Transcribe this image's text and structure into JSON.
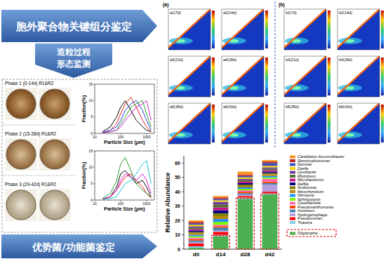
{
  "arrows": [
    "胞外聚合物关键组分鉴定",
    "优势菌/功能菌鉴定"
  ],
  "chevron": [
    "造粒过程",
    "形态监测"
  ],
  "phases": [
    "Phase 1 (0-14d) R1&R2",
    "Phase 2 (15-28d) R1&R2",
    "Phase 3 (29-42d) R1&R2"
  ],
  "eem": {
    "groups": [
      {
        "label": "(a)",
        "panels": [
          "a1(7d)",
          "a2(14d)",
          "a3(21d)",
          "a4(28d)",
          "a5(35d)",
          "a6(42d)"
        ]
      },
      {
        "label": "(b)",
        "panels": [
          "b1(7d)",
          "b2(14d)",
          "b3(21d)",
          "b4(28d)",
          "b5(35d)",
          "b6(42d)"
        ]
      }
    ]
  },
  "chart_data": [
    {
      "type": "line",
      "xlabel": "Particle Size (μm)",
      "ylabel": "Fraction(%)",
      "log": "x",
      "x": [
        20,
        40,
        70,
        100,
        150,
        250,
        400,
        700,
        1000,
        1500
      ],
      "xlim": [
        10,
        2000
      ],
      "xticks": [
        10,
        100,
        1000
      ],
      "ylim": [
        0,
        15
      ],
      "yticks": [
        0,
        5,
        10,
        15
      ],
      "series": [
        {
          "color": "#000000",
          "values": [
            0.5,
            2,
            5,
            8,
            10,
            7,
            4,
            2,
            1,
            0.5
          ]
        },
        {
          "color": "#e41a1c",
          "values": [
            0.3,
            1,
            3,
            6,
            9,
            11,
            8,
            4,
            2,
            0.5
          ]
        },
        {
          "color": "#1f3fd0",
          "values": [
            0.2,
            1,
            2,
            4,
            7,
            9,
            10,
            7,
            4,
            1
          ]
        },
        {
          "color": "#2ca02c",
          "values": [
            0.1,
            0.5,
            1,
            3,
            5,
            8,
            9,
            10,
            6,
            2
          ]
        },
        {
          "color": "#d01fd0",
          "values": [
            0.1,
            0.5,
            1,
            2,
            4,
            6,
            8,
            9,
            10,
            4
          ]
        }
      ]
    },
    {
      "type": "line",
      "xlabel": "Particle Size (μm)",
      "ylabel": "Fraction(%)",
      "log": "x",
      "x": [
        20,
        40,
        70,
        100,
        150,
        250,
        400,
        700,
        1000,
        1500
      ],
      "xlim": [
        10,
        2000
      ],
      "xticks": [
        10,
        100,
        1000
      ],
      "ylim": [
        0,
        15
      ],
      "yticks": [
        0,
        5,
        10,
        15
      ],
      "series": [
        {
          "color": "#000000",
          "values": [
            0.3,
            1,
            4,
            8,
            9,
            7,
            5,
            6,
            4,
            1
          ]
        },
        {
          "color": "#e41a1c",
          "values": [
            0.2,
            1,
            3,
            5,
            7,
            8,
            6,
            4,
            2,
            0.5
          ]
        },
        {
          "color": "#2ca02c",
          "values": [
            0.5,
            2,
            6,
            11,
            13,
            9,
            5,
            3,
            2,
            1
          ]
        },
        {
          "color": "#d01fd0",
          "values": [
            0.3,
            1,
            3,
            6,
            8,
            7,
            6,
            8,
            6,
            2
          ]
        },
        {
          "color": "#17becf",
          "values": [
            0.2,
            0.5,
            1,
            3,
            5,
            6,
            8,
            11,
            12,
            5
          ]
        }
      ]
    },
    {
      "type": "bar",
      "stacked": true,
      "ylabel": "Relative Abundance",
      "categories": [
        "d0",
        "d14",
        "d28",
        "d42"
      ],
      "ylim": [
        0,
        65
      ],
      "yticks": [
        0,
        10,
        20,
        30,
        40,
        50,
        60
      ],
      "series": [
        {
          "name": "Candidatus Accumulibacter",
          "color": "#f7941d",
          "values": [
            1,
            1,
            2,
            1
          ]
        },
        {
          "name": "Stenotrophomonas",
          "color": "#c1272d",
          "values": [
            1,
            1,
            1,
            1
          ]
        },
        {
          "name": "Devosia",
          "color": "#3f51b5",
          "values": [
            1,
            1,
            1,
            2
          ]
        },
        {
          "name": "Dyella",
          "color": "#ffd700",
          "values": [
            1,
            1,
            1,
            1
          ]
        },
        {
          "name": "Lysobacter",
          "color": "#6a3d9a",
          "values": [
            1,
            2,
            1,
            1
          ]
        },
        {
          "name": "Rhizobium",
          "color": "#556b2f",
          "values": [
            1,
            2,
            1,
            1
          ]
        },
        {
          "name": "Microbacterium",
          "color": "#c71585",
          "values": [
            1,
            2,
            1,
            1
          ]
        },
        {
          "name": "Delftia",
          "color": "#000080",
          "values": [
            1,
            2,
            1,
            1
          ]
        },
        {
          "name": "Acidovorax",
          "color": "#808000",
          "values": [
            1,
            2,
            1,
            1
          ]
        },
        {
          "name": "Mesorhizobium",
          "color": "#b8860b",
          "values": [
            1,
            2,
            1,
            1
          ]
        },
        {
          "name": "Nitrospira",
          "color": "#1e90ff",
          "values": [
            1,
            2,
            1,
            1
          ]
        },
        {
          "name": "Sphingopyxis",
          "color": "#7cfc00",
          "values": [
            1,
            2,
            1,
            1
          ]
        },
        {
          "name": "Castellaniella",
          "color": "#ff69b4",
          "values": [
            1,
            1,
            1,
            2
          ]
        },
        {
          "name": "Pseudoxanthomonas",
          "color": "#ff4500",
          "values": [
            1,
            1,
            1,
            1
          ]
        },
        {
          "name": "Azonexus",
          "color": "#4682b4",
          "values": [
            1,
            2,
            1,
            1
          ]
        },
        {
          "name": "Hydrogenophaga",
          "color": "#b39ddb",
          "values": [
            1,
            1,
            1,
            5
          ]
        },
        {
          "name": "Pseudomonas",
          "color": "#ff0000",
          "values": [
            2,
            2,
            1,
            1
          ]
        },
        {
          "name": "Thauera",
          "color": "#87ceeb",
          "values": [
            1,
            1,
            1,
            1
          ]
        },
        {
          "name": "Oligotropha",
          "color": "#4caf50",
          "values": [
            1,
            9,
            35,
            38
          ]
        }
      ]
    }
  ]
}
